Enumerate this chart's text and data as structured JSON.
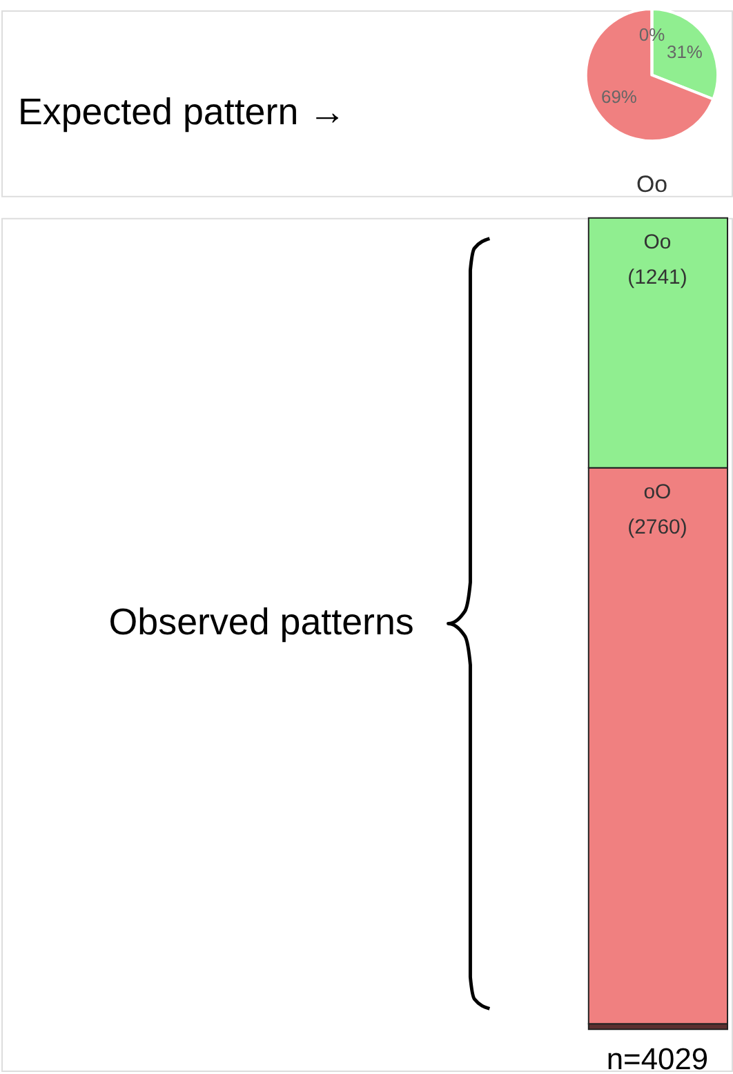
{
  "chart_data": [
    {
      "type": "pie",
      "xlabel": "Oo",
      "categories": [
        null,
        null,
        null
      ],
      "values": [
        31,
        69,
        0
      ],
      "colors": [
        "#90ee90",
        "#f08080",
        "#5c3030"
      ],
      "value_labels": [
        "31%",
        "69%",
        "0%"
      ],
      "annotations": [
        "Expected pattern →"
      ]
    },
    {
      "type": "bar",
      "stacked": true,
      "categories": [
        null
      ],
      "xlabel": "n=4029",
      "annotations": [
        "Observed patterns"
      ],
      "series": [
        {
          "color": "#5c3030",
          "values": [
            28
          ]
        },
        {
          "name": "oO",
          "color": "#f08080",
          "values": [
            2760
          ],
          "value_labels": [
            "(2760)"
          ]
        },
        {
          "name": "Oo",
          "color": "#90ee90",
          "values": [
            1241
          ],
          "value_labels": [
            "(1241)"
          ]
        }
      ]
    }
  ]
}
